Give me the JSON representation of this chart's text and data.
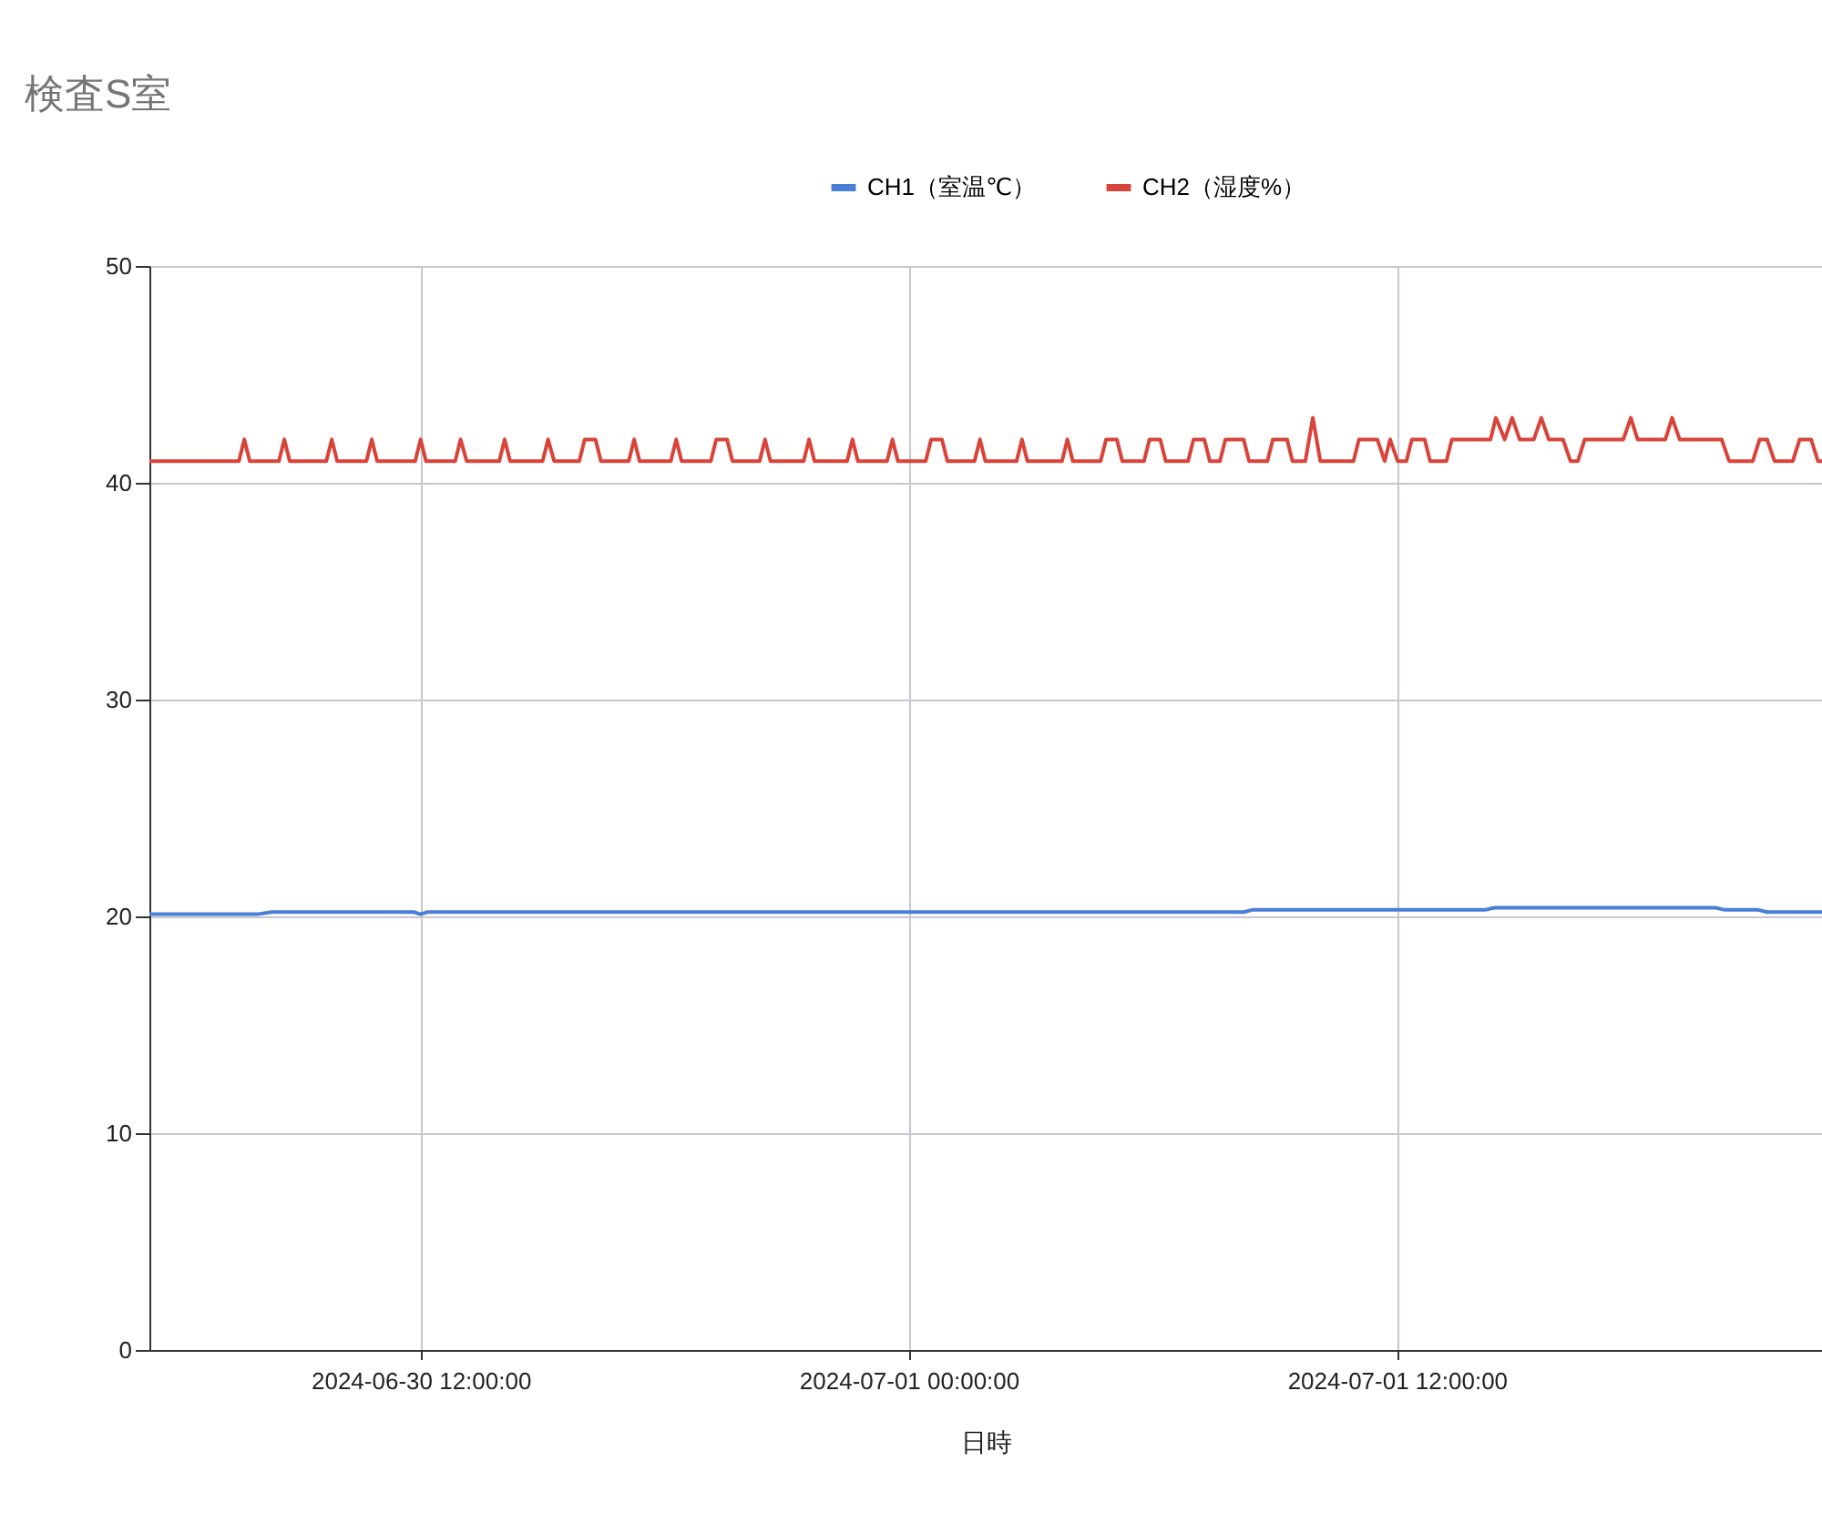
{
  "chart_data": {
    "type": "line",
    "title": "検査S室",
    "xlabel": "日時",
    "legend": "top",
    "grid": true,
    "line_style": "solid",
    "marker": "none",
    "xlim": [
      "2024-06-30T05:20",
      "2024-07-01T22:27"
    ],
    "xticks": [
      {
        "value": "2024-06-30T12:00",
        "label": "2024-06-30 12:00:00"
      },
      {
        "value": "2024-07-01T00:00",
        "label": "2024-07-01 00:00:00"
      },
      {
        "value": "2024-07-01T12:00",
        "label": "2024-07-01 12:00:00"
      }
    ],
    "ylim": [
      0,
      50
    ],
    "yticks": [
      0,
      10,
      20,
      30,
      40,
      50
    ],
    "series": [
      {
        "name": "CH1（室温℃）",
        "color": "#4a7fd8",
        "x": [
          "2024-06-30T05:20",
          "2024-06-30T08:00",
          "2024-06-30T08:20",
          "2024-06-30T11:50",
          "2024-06-30T12:00",
          "2024-06-30T12:10",
          "2024-07-01T08:14",
          "2024-07-01T08:27",
          "2024-07-01T14:10",
          "2024-07-01T14:24",
          "2024-07-01T19:50",
          "2024-07-01T20:04",
          "2024-07-01T20:53",
          "2024-07-01T21:06",
          "2024-07-01T22:27"
        ],
        "values": [
          20.1,
          20.1,
          20.2,
          20.2,
          20.1,
          20.2,
          20.2,
          20.3,
          20.3,
          20.4,
          20.4,
          20.3,
          20.3,
          20.2,
          20.2
        ]
      },
      {
        "name": "CH2（湿度%）",
        "color": "#d9443a",
        "x": [
          "2024-06-30T05:20",
          "2024-06-30T07:32",
          "2024-06-30T07:40",
          "2024-06-30T07:48",
          "2024-06-30T08:31",
          "2024-06-30T08:39",
          "2024-06-30T08:47",
          "2024-06-30T09:41",
          "2024-06-30T09:49",
          "2024-06-30T09:57",
          "2024-06-30T10:40",
          "2024-06-30T10:48",
          "2024-06-30T10:56",
          "2024-06-30T11:52",
          "2024-06-30T12:00",
          "2024-06-30T12:08",
          "2024-06-30T12:51",
          "2024-06-30T12:59",
          "2024-06-30T13:08",
          "2024-06-30T13:56",
          "2024-06-30T14:04",
          "2024-06-30T14:12",
          "2024-06-30T15:00",
          "2024-06-30T15:08",
          "2024-06-30T15:17",
          "2024-06-30T15:54",
          "2024-06-30T16:02",
          "2024-06-30T16:18",
          "2024-06-30T16:26",
          "2024-06-30T17:07",
          "2024-06-30T17:15",
          "2024-06-30T17:23",
          "2024-06-30T18:09",
          "2024-06-30T18:17",
          "2024-06-30T18:25",
          "2024-06-30T19:08",
          "2024-06-30T19:16",
          "2024-06-30T19:32",
          "2024-06-30T19:40",
          "2024-06-30T20:20",
          "2024-06-30T20:28",
          "2024-06-30T20:36",
          "2024-06-30T21:25",
          "2024-06-30T21:33",
          "2024-06-30T21:41",
          "2024-06-30T22:29",
          "2024-06-30T22:37",
          "2024-06-30T22:45",
          "2024-06-30T23:28",
          "2024-06-30T23:36",
          "2024-06-30T23:44",
          "2024-07-01T00:25",
          "2024-07-01T00:33",
          "2024-07-01T00:49",
          "2024-07-01T00:57",
          "2024-07-01T01:37",
          "2024-07-01T01:45",
          "2024-07-01T01:53",
          "2024-07-01T02:39",
          "2024-07-01T02:47",
          "2024-07-01T02:55",
          "2024-07-01T03:46",
          "2024-07-01T03:54",
          "2024-07-01T04:02",
          "2024-07-01T04:43",
          "2024-07-01T04:51",
          "2024-07-01T05:07",
          "2024-07-01T05:15",
          "2024-07-01T05:47",
          "2024-07-01T05:55",
          "2024-07-01T06:11",
          "2024-07-01T06:19",
          "2024-07-01T06:52",
          "2024-07-01T07:00",
          "2024-07-01T07:16",
          "2024-07-01T07:24",
          "2024-07-01T07:39",
          "2024-07-01T07:47",
          "2024-07-01T08:14",
          "2024-07-01T08:22",
          "2024-07-01T08:49",
          "2024-07-01T08:57",
          "2024-07-01T09:18",
          "2024-07-01T09:26",
          "2024-07-01T09:45",
          "2024-07-01T09:56",
          "2024-07-01T10:07",
          "2024-07-01T10:56",
          "2024-07-01T11:04",
          "2024-07-01T11:31",
          "2024-07-01T11:42",
          "2024-07-01T11:50",
          "2024-07-01T12:01",
          "2024-07-01T12:14",
          "2024-07-01T12:22",
          "2024-07-01T12:41",
          "2024-07-01T12:49",
          "2024-07-01T13:13",
          "2024-07-01T13:21",
          "2024-07-01T14:18",
          "2024-07-01T14:26",
          "2024-07-01T14:39",
          "2024-07-01T14:50",
          "2024-07-01T15:01",
          "2024-07-01T15:22",
          "2024-07-01T15:33",
          "2024-07-01T15:44",
          "2024-07-01T16:05",
          "2024-07-01T16:16",
          "2024-07-01T16:27",
          "2024-07-01T16:37",
          "2024-07-01T17:34",
          "2024-07-01T17:45",
          "2024-07-01T17:55",
          "2024-07-01T18:36",
          "2024-07-01T18:46",
          "2024-07-01T18:57",
          "2024-07-01T19:59",
          "2024-07-01T20:10",
          "2024-07-01T20:45",
          "2024-07-01T20:55",
          "2024-07-01T21:06",
          "2024-07-01T21:17",
          "2024-07-01T21:44",
          "2024-07-01T21:54",
          "2024-07-01T22:11",
          "2024-07-01T22:21",
          "2024-07-01T22:27"
        ],
        "values": [
          41,
          41,
          42,
          41,
          41,
          42,
          41,
          41,
          42,
          41,
          41,
          42,
          41,
          41,
          42,
          41,
          41,
          42,
          41,
          41,
          42,
          41,
          41,
          42,
          41,
          41,
          42,
          42,
          41,
          41,
          42,
          41,
          41,
          42,
          41,
          41,
          42,
          42,
          41,
          41,
          42,
          41,
          41,
          42,
          41,
          41,
          42,
          41,
          41,
          42,
          41,
          41,
          42,
          42,
          41,
          41,
          42,
          41,
          41,
          42,
          41,
          41,
          42,
          41,
          41,
          42,
          42,
          41,
          41,
          42,
          42,
          41,
          41,
          42,
          42,
          41,
          41,
          42,
          42,
          41,
          41,
          42,
          42,
          41,
          41,
          43,
          41,
          41,
          42,
          42,
          41,
          42,
          41,
          41,
          42,
          42,
          41,
          41,
          42,
          42,
          43,
          42,
          43,
          42,
          42,
          43,
          42,
          42,
          41,
          41,
          42,
          42,
          43,
          42,
          42,
          43,
          42,
          42,
          41,
          41,
          42,
          42,
          41,
          41,
          42,
          42,
          41,
          41
        ]
      }
    ]
  }
}
